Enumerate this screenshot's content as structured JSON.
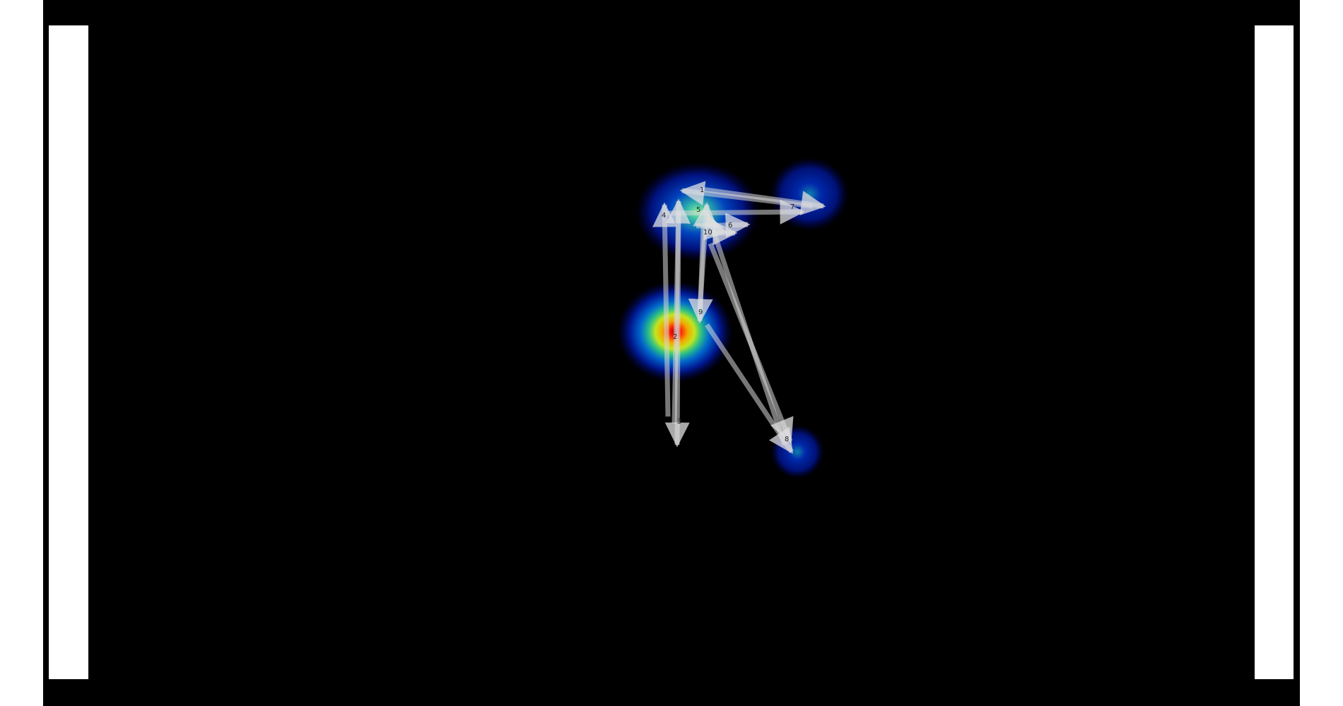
{
  "viewer": {
    "background_color": "#000000",
    "side_panel_color": "#ffffff",
    "heatmap_colormap": "jet",
    "arrow_color": "#d8d8d8"
  },
  "heatmap": {
    "hotspots": [
      {
        "id": "h1",
        "intensity": 1.0
      },
      {
        "id": "h2",
        "intensity": 0.55
      },
      {
        "id": "h3",
        "intensity": 0.35
      },
      {
        "id": "h4",
        "intensity": 0.3
      },
      {
        "id": "h5",
        "intensity": 0.2
      }
    ]
  },
  "scanpath": {
    "fixation_labels": [
      "1",
      "2",
      "3",
      "4",
      "5",
      "6",
      "7",
      "8",
      "9",
      "10",
      "11",
      "12",
      "13",
      "14",
      "15",
      "16",
      "17",
      "18",
      "19",
      "20"
    ]
  }
}
